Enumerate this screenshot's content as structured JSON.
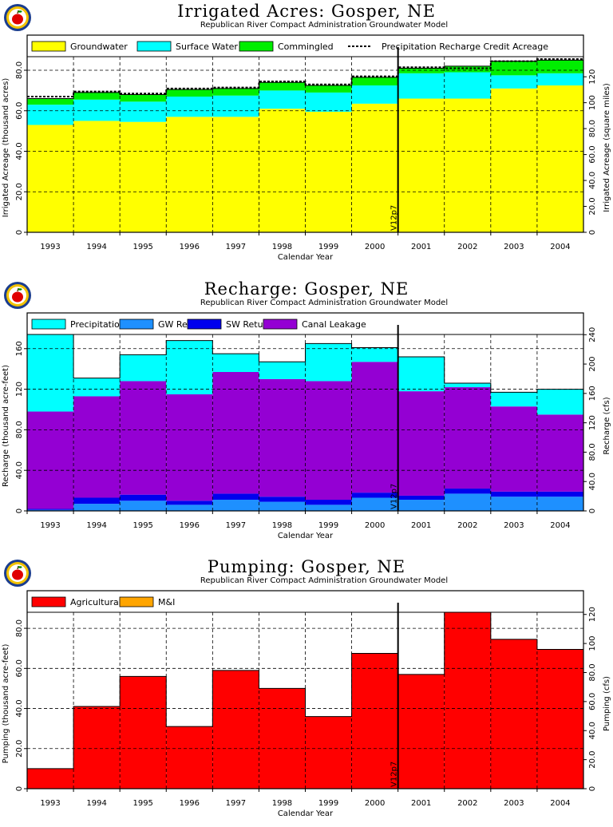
{
  "chart_data": [
    {
      "type": "area",
      "title": "Irrigated Acres: Gosper, NE",
      "subtitle": "Republican River Compact Administration Groundwater Model",
      "xlabel": "Calendar Year",
      "ylabel": "Irrigated Acreage (thousand acres)",
      "ylabel_right": "Irrigated Acreage (square miles)",
      "categories": [
        "1993",
        "1994",
        "1995",
        "1996",
        "1997",
        "1998",
        "1999",
        "2000",
        "2001",
        "2002",
        "2003",
        "2004"
      ],
      "ylim": [
        0,
        86.7
      ],
      "yticks": [
        0,
        20.0,
        40.0,
        60.0,
        80.0
      ],
      "yticks_labels": [
        "0",
        "20.0",
        "40.0",
        "60.0",
        "80.0"
      ],
      "yticks_right": [
        0,
        20.0,
        40.0,
        60.0,
        80.0,
        100,
        120
      ],
      "yticks_right_labels": [
        "0",
        "20.0",
        "40.0",
        "60.0",
        "80.0",
        "100",
        "120"
      ],
      "ylim_right": [
        0,
        135.5
      ],
      "stacked": true,
      "grid": true,
      "legend_position": "top",
      "marker": {
        "after_index": 7,
        "label": "V12p7"
      },
      "series": [
        {
          "name": "Groundwater",
          "color": "#ffff00",
          "values": [
            53,
            55,
            54.5,
            57,
            57,
            61,
            59.5,
            63.5,
            66,
            66,
            71,
            72.5
          ]
        },
        {
          "name": "Surface Water",
          "color": "#00ffff",
          "values": [
            10,
            10.5,
            10,
            10,
            10.5,
            9,
            9.5,
            9,
            12.5,
            13,
            6.5,
            6
          ]
        },
        {
          "name": "Commingled",
          "color": "#00ee00",
          "values": [
            3,
            3.5,
            3.5,
            3.5,
            3.5,
            4,
            3.5,
            4,
            2.5,
            3,
            7,
            6.5
          ]
        }
      ],
      "lines": [
        {
          "name": "Precipitation Recharge Credit Acreage",
          "style": "dashed",
          "values": [
            67,
            69.5,
            68.5,
            71,
            71.5,
            74.5,
            73,
            77,
            81.5,
            81,
            84.5,
            85.5
          ]
        }
      ]
    },
    {
      "type": "area",
      "title": "Recharge: Gosper, NE",
      "subtitle": "Republican River Compact Administration Groundwater Model",
      "xlabel": "Calendar Year",
      "ylabel": "Recharge (thousand acre-feet)",
      "ylabel_right": "Recharge (cfs)",
      "categories": [
        "1993",
        "1994",
        "1995",
        "1996",
        "1997",
        "1998",
        "1999",
        "2000",
        "2001",
        "2002",
        "2003",
        "2004"
      ],
      "ylim": [
        0,
        174
      ],
      "yticks": [
        0,
        40.0,
        80.0,
        120,
        160
      ],
      "yticks_labels": [
        "0",
        "40.0",
        "80.0",
        "120",
        "160"
      ],
      "yticks_right": [
        0,
        40.0,
        80.0,
        120,
        160,
        200,
        240
      ],
      "yticks_right_labels": [
        "0",
        "40.0",
        "80.0",
        "120",
        "160",
        "200",
        "240"
      ],
      "ylim_right": [
        0,
        240.3
      ],
      "stacked": true,
      "grid": true,
      "legend_position": "top",
      "marker": {
        "after_index": 7,
        "label": "V12p7"
      },
      "series": [
        {
          "name": "GW Returns",
          "color": "#1e90ff",
          "values": [
            1,
            7,
            10,
            6,
            11,
            9,
            6,
            13,
            11,
            17,
            14,
            14
          ]
        },
        {
          "name": "SW Returns",
          "color": "#0000ee",
          "values": [
            1,
            6,
            6,
            4,
            6,
            5,
            5,
            5,
            4,
            5,
            5,
            5
          ]
        },
        {
          "name": "Canal Leakage",
          "color": "#9400d3",
          "values": [
            96,
            100,
            112,
            105,
            120,
            116,
            117,
            129,
            103,
            100,
            84,
            76
          ]
        },
        {
          "name": "Precipitation",
          "color": "#00ffff",
          "values": [
            76,
            18,
            26,
            53,
            18,
            17,
            37,
            14,
            34,
            4,
            14,
            25
          ]
        }
      ]
    },
    {
      "type": "bar",
      "title": "Pumping: Gosper, NE",
      "subtitle": "Republican River Compact Administration Groundwater Model",
      "xlabel": "Calendar Year",
      "ylabel": "Pumping (thousand acre-feet)",
      "ylabel_right": "Pumping (cfs)",
      "categories": [
        "1993",
        "1994",
        "1995",
        "1996",
        "1997",
        "1998",
        "1999",
        "2000",
        "2001",
        "2002",
        "2003",
        "2004"
      ],
      "ylim": [
        0,
        88
      ],
      "yticks": [
        0,
        20.0,
        40.0,
        60.0,
        80.0
      ],
      "yticks_labels": [
        "0",
        "20.0",
        "40.0",
        "60.0",
        "80.0"
      ],
      "yticks_right": [
        0,
        20.0,
        40.0,
        60.0,
        80.0,
        100,
        120
      ],
      "yticks_right_labels": [
        "0",
        "20.0",
        "40.0",
        "60.0",
        "80.0",
        "100",
        "120"
      ],
      "ylim_right": [
        0,
        121.5
      ],
      "stacked": true,
      "grid": true,
      "legend_position": "top",
      "marker": {
        "after_index": 7,
        "label": "V12p7"
      },
      "series": [
        {
          "name": "Agricultural",
          "color": "#ff0000",
          "values": [
            10,
            41,
            56,
            31,
            59,
            50,
            36,
            67.5,
            57,
            88,
            74.5,
            69.5
          ]
        },
        {
          "name": "M&I",
          "color": "#ffa500",
          "values": [
            0,
            0,
            0,
            0,
            0,
            0,
            0,
            0,
            0,
            0,
            0,
            0
          ]
        }
      ]
    }
  ],
  "panels": [
    {
      "title": "Irrigated Acres: Gosper, NE",
      "subtitle": "Republican River Compact Administration Groundwater Model"
    },
    {
      "title": "Recharge: Gosper, NE",
      "subtitle": "Republican River Compact Administration Groundwater Model"
    },
    {
      "title": "Pumping: Gosper, NE",
      "subtitle": "Republican River Compact Administration Groundwater Model"
    }
  ],
  "logo_icon": "apple-seal-icon"
}
